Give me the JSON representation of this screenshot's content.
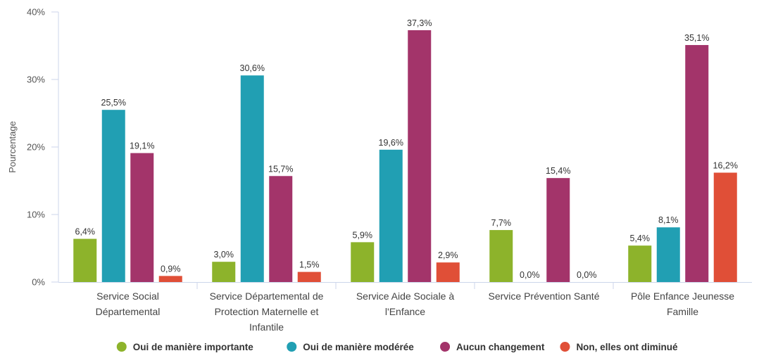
{
  "chart_data": {
    "type": "bar",
    "ylabel": "Pourcentage",
    "ylim": [
      0,
      40
    ],
    "yticks": [
      "0%",
      "10%",
      "20%",
      "30%",
      "40%"
    ],
    "grid": false,
    "legend_position": "bottom",
    "categories": [
      [
        "Service Social",
        "Départemental"
      ],
      [
        "Service Départemental de",
        "Protection Maternelle et",
        "Infantile"
      ],
      [
        "Service Aide Sociale à",
        "l'Enfance"
      ],
      [
        "Service Prévention Santé"
      ],
      [
        "Pôle Enfance Jeunesse",
        "Famille"
      ]
    ],
    "series": [
      {
        "name": "Oui de manière importante",
        "color": "#8db32b",
        "values": [
          6.4,
          3.0,
          5.9,
          7.7,
          5.4
        ],
        "labels": [
          "6,4%",
          "3,0%",
          "5,9%",
          "7,7%",
          "5,4%"
        ]
      },
      {
        "name": "Oui de manière modérée",
        "color": "#219fb3",
        "values": [
          25.5,
          30.6,
          19.6,
          0.0,
          8.1
        ],
        "labels": [
          "25,5%",
          "30,6%",
          "19,6%",
          "0,0%",
          "8,1%"
        ]
      },
      {
        "name": "Aucun changement",
        "color": "#a3346a",
        "values": [
          19.1,
          15.7,
          37.3,
          15.4,
          35.1
        ],
        "labels": [
          "19,1%",
          "15,7%",
          "37,3%",
          "15,4%",
          "35,1%"
        ]
      },
      {
        "name": "Non, elles ont diminué",
        "color": "#e04f37",
        "values": [
          0.9,
          1.5,
          2.9,
          0.0,
          16.2
        ],
        "labels": [
          "0,9%",
          "1,5%",
          "2,9%",
          "0,0%",
          "16,2%"
        ]
      }
    ]
  }
}
